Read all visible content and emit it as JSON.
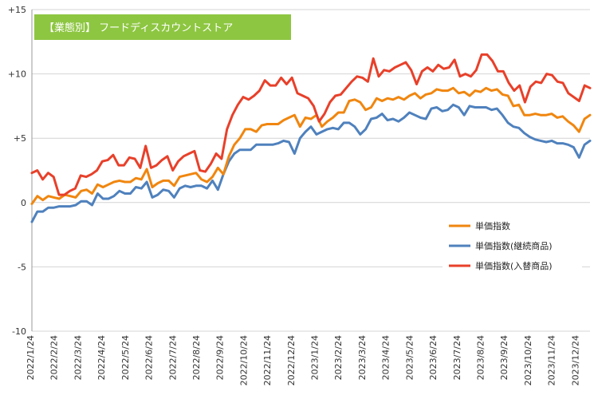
{
  "chart_data": {
    "type": "line",
    "title": "【業態別】 フードディスカウントストア",
    "title_bg_color": "#8DC641",
    "ylim": [
      -10,
      15
    ],
    "y_ticks": [
      {
        "value": 15,
        "label": "+15"
      },
      {
        "value": 10,
        "label": "+10"
      },
      {
        "value": 5,
        "label": "+5"
      },
      {
        "value": 0,
        "label": "0"
      },
      {
        "value": -5,
        "label": "-5"
      },
      {
        "value": -10,
        "label": "-10"
      }
    ],
    "grid": "horizontal",
    "legend_position": "right",
    "x_tick_labels": [
      "2022/1/24",
      "2022/2/24",
      "2022/3/24",
      "2022/4/24",
      "2022/5/24",
      "2022/6/24",
      "2022/7/24",
      "2022/8/24",
      "2022/9/24",
      "2022/10/24",
      "2022/11/24",
      "2022/12/24",
      "2023/1/24",
      "2023/2/24",
      "2023/3/24",
      "2023/4/24",
      "2023/5/24",
      "2023/6/24",
      "2023/7/24",
      "2023/8/24",
      "2023/9/24",
      "2023/10/24",
      "2023/11/24",
      "2023/12/24"
    ],
    "series": [
      {
        "name": "単価指数",
        "color": "#F0860F",
        "values": [
          -0.1,
          0.5,
          0.2,
          0.5,
          0.4,
          0.3,
          0.6,
          0.5,
          0.4,
          0.9,
          1.0,
          0.7,
          1.4,
          1.2,
          1.4,
          1.6,
          1.7,
          1.6,
          1.6,
          1.9,
          1.8,
          2.6,
          1.2,
          1.5,
          1.7,
          1.7,
          1.3,
          2.0,
          2.1,
          2.2,
          2.3,
          1.8,
          1.6,
          2.0,
          2.7,
          2.2,
          3.6,
          4.5,
          5.0,
          5.7,
          5.7,
          5.5,
          6.0,
          6.1,
          6.1,
          6.1,
          6.4,
          6.6,
          6.8,
          5.9,
          6.6,
          6.5,
          6.8,
          5.9,
          6.3,
          6.6,
          7.0,
          7.0,
          7.9,
          8.0,
          7.8,
          7.2,
          7.4,
          8.1,
          7.9,
          8.1,
          8.0,
          8.2,
          8.0,
          8.3,
          8.5,
          8.1,
          8.4,
          8.5,
          8.8,
          8.7,
          8.7,
          8.9,
          8.5,
          8.6,
          8.3,
          8.7,
          8.6,
          8.9,
          8.7,
          8.8,
          8.4,
          8.3,
          7.5,
          7.6,
          6.8,
          6.8,
          6.9,
          6.8,
          6.8,
          6.9,
          6.6,
          6.7,
          6.3,
          6.0,
          5.5,
          6.5,
          6.8
        ]
      },
      {
        "name": "単価指数(継続商品)",
        "color": "#4F81BD",
        "values": [
          -1.5,
          -0.7,
          -0.7,
          -0.4,
          -0.4,
          -0.3,
          -0.3,
          -0.3,
          -0.2,
          0.1,
          0.1,
          -0.2,
          0.7,
          0.3,
          0.3,
          0.5,
          0.9,
          0.7,
          0.7,
          1.2,
          1.1,
          1.6,
          0.4,
          0.6,
          1.0,
          0.9,
          0.4,
          1.1,
          1.3,
          1.2,
          1.3,
          1.3,
          1.1,
          1.7,
          1.0,
          2.2,
          3.2,
          3.8,
          4.1,
          4.1,
          4.1,
          4.5,
          4.5,
          4.5,
          4.5,
          4.6,
          4.8,
          4.7,
          3.8,
          5.0,
          5.5,
          5.9,
          5.3,
          5.5,
          5.7,
          5.8,
          5.7,
          6.2,
          6.2,
          5.9,
          5.3,
          5.7,
          6.5,
          6.6,
          6.9,
          6.4,
          6.5,
          6.3,
          6.6,
          7.0,
          6.8,
          6.6,
          6.5,
          7.3,
          7.4,
          7.1,
          7.2,
          7.6,
          7.4,
          6.8,
          7.5,
          7.4,
          7.4,
          7.4,
          7.2,
          7.3,
          6.8,
          6.2,
          5.9,
          5.8,
          5.4,
          5.1,
          4.9,
          4.8,
          4.7,
          4.8,
          4.6,
          4.6,
          4.5,
          4.3,
          3.5,
          4.5,
          4.8
        ]
      },
      {
        "name": "単価指数(入替商品)",
        "color": "#E8402A",
        "values": [
          2.3,
          2.5,
          1.8,
          2.3,
          2.0,
          0.6,
          0.6,
          0.9,
          1.1,
          2.1,
          2.0,
          2.2,
          2.5,
          3.2,
          3.3,
          3.7,
          2.9,
          2.9,
          3.5,
          3.4,
          2.7,
          4.4,
          2.7,
          2.9,
          3.3,
          3.6,
          2.5,
          3.2,
          3.6,
          3.8,
          4.0,
          2.5,
          2.4,
          3.0,
          3.8,
          3.4,
          5.7,
          6.8,
          7.6,
          8.2,
          8.0,
          8.3,
          8.7,
          9.5,
          9.1,
          9.1,
          9.7,
          9.2,
          9.7,
          8.5,
          8.3,
          8.1,
          7.5,
          6.3,
          6.9,
          7.8,
          8.3,
          8.4,
          8.9,
          9.4,
          9.8,
          9.7,
          9.4,
          11.2,
          9.8,
          10.3,
          10.2,
          10.5,
          10.7,
          10.9,
          10.3,
          9.2,
          10.2,
          10.5,
          10.2,
          10.7,
          10.4,
          10.5,
          11.1,
          9.8,
          10.0,
          9.8,
          10.3,
          11.5,
          11.5,
          11.0,
          10.2,
          10.2,
          9.3,
          8.7,
          9.1,
          7.8,
          9.0,
          9.4,
          9.3,
          10.0,
          9.9,
          9.4,
          9.3,
          8.5,
          8.2,
          7.9,
          9.1,
          8.9
        ]
      }
    ]
  }
}
